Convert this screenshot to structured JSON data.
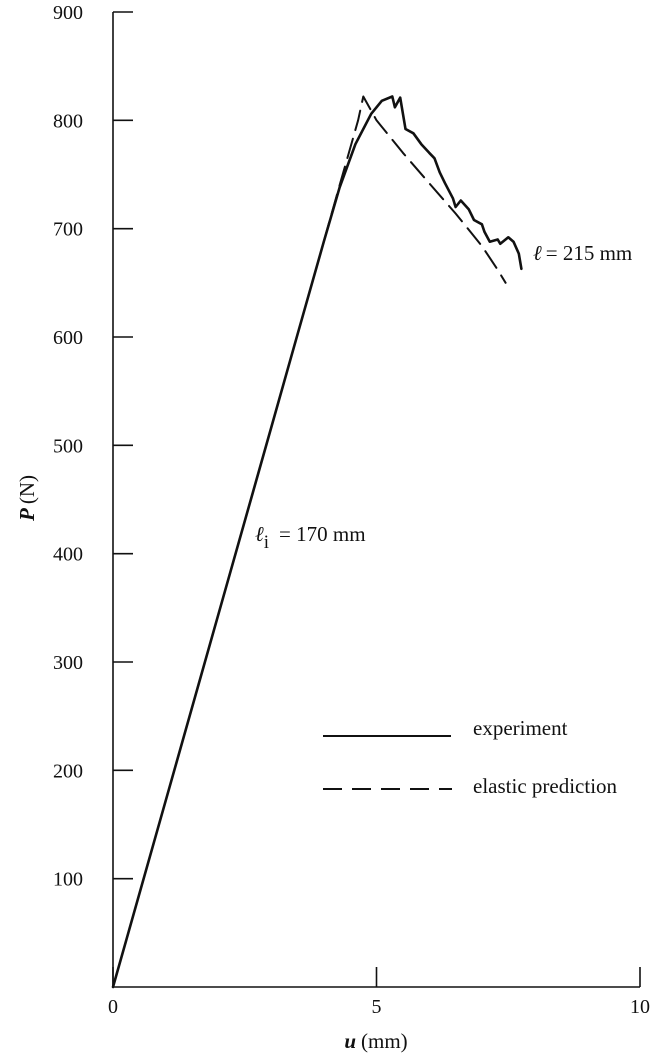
{
  "chart_data": {
    "type": "line",
    "title": "",
    "xlabel": {
      "symbol": "u",
      "unit": "(mm)"
    },
    "ylabel": {
      "symbol": "P",
      "unit": "(N)"
    },
    "xlim": [
      0,
      10
    ],
    "ylim": [
      0,
      900
    ],
    "x_ticks": [
      "0",
      "5",
      "10"
    ],
    "x_tick_values": [
      0,
      5,
      10
    ],
    "y_ticks": [
      "100",
      "200",
      "300",
      "400",
      "500",
      "600",
      "700",
      "800",
      "900"
    ],
    "y_tick_values": [
      100,
      200,
      300,
      400,
      500,
      600,
      700,
      800,
      900
    ],
    "grid": false,
    "legend_position": "right",
    "series": [
      {
        "name": "experiment",
        "style": "solid",
        "color": "#111111",
        "points": [
          [
            0,
            0
          ],
          [
            1,
            172
          ],
          [
            2,
            344
          ],
          [
            3,
            516
          ],
          [
            3.5,
            602
          ],
          [
            4,
            688
          ],
          [
            4.3,
            738
          ],
          [
            4.6,
            778
          ],
          [
            4.9,
            806
          ],
          [
            5.1,
            818
          ],
          [
            5.3,
            822
          ],
          [
            5.35,
            812
          ],
          [
            5.45,
            821
          ],
          [
            5.55,
            792
          ],
          [
            5.7,
            788
          ],
          [
            5.85,
            778
          ],
          [
            6.0,
            770
          ],
          [
            6.1,
            765
          ],
          [
            6.2,
            752
          ],
          [
            6.3,
            742
          ],
          [
            6.45,
            728
          ],
          [
            6.5,
            720
          ],
          [
            6.6,
            726
          ],
          [
            6.75,
            718
          ],
          [
            6.85,
            708
          ],
          [
            7.0,
            704
          ],
          [
            7.05,
            697
          ],
          [
            7.15,
            688
          ],
          [
            7.3,
            690
          ],
          [
            7.35,
            686
          ],
          [
            7.5,
            692
          ],
          [
            7.6,
            688
          ],
          [
            7.7,
            677
          ],
          [
            7.75,
            663
          ]
        ]
      },
      {
        "name": "elastic prediction",
        "style": "dashed",
        "color": "#111111",
        "points": [
          [
            4.0,
            688
          ],
          [
            4.3,
            740
          ],
          [
            4.5,
            774
          ],
          [
            4.65,
            800
          ],
          [
            4.75,
            822
          ],
          [
            5.0,
            800
          ],
          [
            5.5,
            770
          ],
          [
            6.0,
            742
          ],
          [
            6.5,
            714
          ],
          [
            7.0,
            684
          ],
          [
            7.3,
            662
          ],
          [
            7.45,
            650
          ]
        ]
      }
    ],
    "annotations": [
      {
        "text": "ℓi = 170 mm",
        "x": 2.7,
        "y": 410
      },
      {
        "text": "ℓ = 215 mm",
        "x": 8.0,
        "y": 693
      }
    ],
    "legend": [
      {
        "label": "experiment",
        "style": "solid"
      },
      {
        "label": "elastic prediction",
        "style": "dashed"
      }
    ]
  }
}
